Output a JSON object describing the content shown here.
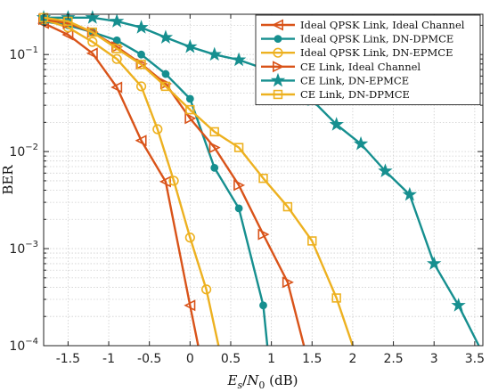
{
  "chart_data": {
    "type": "line",
    "xlabel": "E_s/N_0 (dB)",
    "ylabel": "BER",
    "xlim": [
      -1.8,
      3.6
    ],
    "ylim": [
      0.0001,
      0.26
    ],
    "yscale": "log",
    "grid": true,
    "legend_position": "top-right",
    "x_ticks": [
      "-1.5",
      "-1",
      "-0.5",
      "0",
      "0.5",
      "1",
      "1.5",
      "2",
      "2.5",
      "3",
      "3.5"
    ],
    "y_ticks": [
      {
        "value": 0.0001,
        "base": "10",
        "exp": "−4"
      },
      {
        "value": 0.001,
        "base": "10",
        "exp": "−3"
      },
      {
        "value": 0.01,
        "base": "10",
        "exp": "−2"
      },
      {
        "value": 0.1,
        "base": "10",
        "exp": "−1"
      }
    ],
    "series": [
      {
        "name": "Ideal QPSK Link, Ideal Channel",
        "color": "#d95319",
        "marker": "triangle-left",
        "x": [
          -1.8,
          -1.5,
          -1.2,
          -0.9,
          -0.6,
          -0.3,
          0.0,
          0.1
        ],
        "y": [
          0.21,
          0.16,
          0.103,
          0.046,
          0.013,
          0.0049,
          0.00026,
          0.0001
        ]
      },
      {
        "name": "Ideal QPSK Link, DN-DPMCE",
        "color": "#168f8f",
        "marker": "circle-filled",
        "x": [
          -1.8,
          -1.5,
          -1.2,
          -0.9,
          -0.6,
          -0.3,
          0.0,
          0.3,
          0.6,
          0.9,
          0.95
        ],
        "y": [
          0.22,
          0.2,
          0.17,
          0.14,
          0.1,
          0.063,
          0.035,
          0.0068,
          0.0026,
          0.00026,
          0.0001
        ]
      },
      {
        "name": "Ideal QPSK Link, DN-EPMCE",
        "color": "#edb120",
        "marker": "circle-open",
        "x": [
          -1.8,
          -1.5,
          -1.2,
          -0.9,
          -0.6,
          -0.4,
          -0.2,
          0.0,
          0.2,
          0.35
        ],
        "y": [
          0.23,
          0.19,
          0.135,
          0.09,
          0.047,
          0.017,
          0.005,
          0.0013,
          0.00038,
          0.0001
        ]
      },
      {
        "name": "CE Link, Ideal Channel",
        "color": "#d95319",
        "marker": "triangle-right",
        "x": [
          -1.8,
          -1.5,
          -1.2,
          -0.9,
          -0.6,
          -0.3,
          0.0,
          0.3,
          0.6,
          0.9,
          1.2,
          1.4
        ],
        "y": [
          0.23,
          0.21,
          0.17,
          0.12,
          0.08,
          0.05,
          0.022,
          0.011,
          0.0045,
          0.0014,
          0.00045,
          0.0001
        ]
      },
      {
        "name": "CE Link, DN-EPMCE",
        "color": "#168f8f",
        "marker": "star",
        "x": [
          -1.8,
          -1.5,
          -1.2,
          -0.9,
          -0.6,
          -0.3,
          0.0,
          0.3,
          0.6,
          0.9,
          1.2,
          1.5,
          1.8,
          2.1,
          2.4,
          2.7,
          3.0,
          3.3,
          3.55
        ],
        "y": [
          0.24,
          0.24,
          0.24,
          0.22,
          0.19,
          0.15,
          0.12,
          0.1,
          0.088,
          0.072,
          0.051,
          0.034,
          0.019,
          0.012,
          0.0063,
          0.0036,
          0.0007,
          0.00026,
          0.0001
        ]
      },
      {
        "name": "CE Link, DN-DPMCE",
        "color": "#edb120",
        "marker": "square",
        "x": [
          -1.8,
          -1.5,
          -1.2,
          -0.9,
          -0.6,
          -0.3,
          0.0,
          0.3,
          0.6,
          0.9,
          1.2,
          1.5,
          1.8,
          2.0
        ],
        "y": [
          0.24,
          0.22,
          0.17,
          0.115,
          0.079,
          0.047,
          0.027,
          0.016,
          0.011,
          0.0053,
          0.0027,
          0.0012,
          0.00031,
          0.0001
        ]
      }
    ]
  }
}
